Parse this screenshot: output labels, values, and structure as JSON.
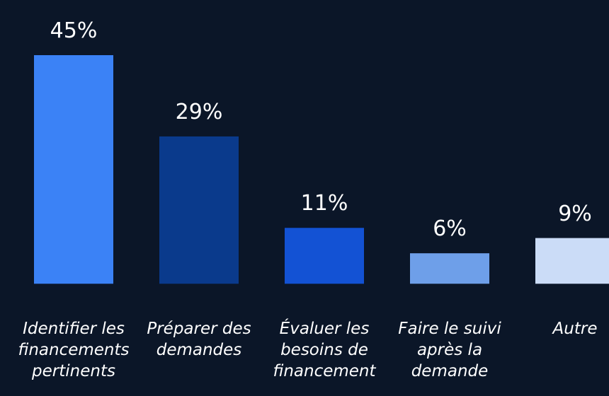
{
  "chart_data": {
    "type": "bar",
    "categories": [
      "Identifier les financements pertinents",
      "Préparer des demandes",
      "Évaluer les besoins de financement",
      "Faire le suivi après la demande",
      "Autre"
    ],
    "values": [
      45,
      29,
      11,
      6,
      9
    ],
    "value_labels": [
      "45%",
      "29%",
      "11%",
      "6%",
      "9%"
    ],
    "colors": [
      "#3b82f6",
      "#0a3a8c",
      "#1352d4",
      "#6e9fe9",
      "#cbdcf7"
    ],
    "ylim": [
      -4,
      45
    ]
  }
}
